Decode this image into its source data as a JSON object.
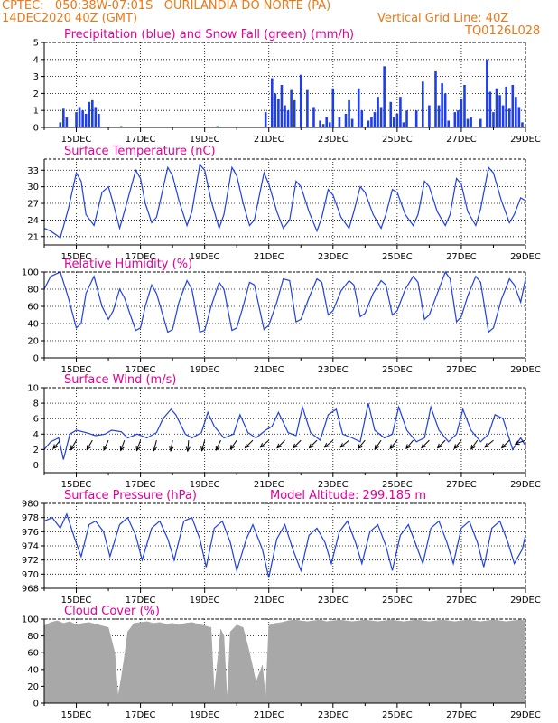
{
  "header": {
    "line1_left": "CPTEC:   050:38W-07:01S   OURILANDIA DO NORTE (PA)",
    "line2_left": "14DEC2020 40Z (GMT)",
    "line2_right": "Vertical Grid Line: 40Z",
    "line3_right": "TQ0126L028",
    "text_color": "#e8781a"
  },
  "colors": {
    "title": "#e0009a",
    "line": "#1f3fe6",
    "cloud": "#a8a8a8",
    "snow": "#15a015"
  },
  "x_axis": {
    "ticks": [
      "15DEC",
      "17DEC",
      "19DEC",
      "21DEC",
      "23DEC",
      "25DEC",
      "27DEC",
      "29DEC"
    ]
  },
  "chart_data": [
    {
      "id": "precip",
      "type": "bar",
      "title": "Precipitation (blue) and Snow Fall (green) (mm/h)",
      "ylim": [
        0,
        5
      ],
      "yticks": [
        0,
        1,
        2,
        3,
        4,
        5
      ],
      "x_range": [
        14.0,
        29.0
      ],
      "series": [
        {
          "kind": "precip",
          "x": [
            14.5,
            14.6,
            14.7,
            15.0,
            15.1,
            15.2,
            15.3,
            15.4,
            15.5,
            15.6,
            15.7,
            20.9,
            21.1,
            21.2,
            21.3,
            21.4,
            21.5,
            21.6,
            21.7,
            21.8,
            22.0,
            22.2,
            22.4,
            22.6,
            22.7,
            22.8,
            22.9,
            23.0,
            23.2,
            23.4,
            23.5,
            23.6,
            23.8,
            23.9,
            24.1,
            24.2,
            24.3,
            24.4,
            24.5,
            24.6,
            24.8,
            24.9,
            25.0,
            25.1,
            25.2,
            25.3,
            25.6,
            25.8,
            26.0,
            26.2,
            26.3,
            26.4,
            26.5,
            26.6,
            26.8,
            26.9,
            27.0,
            27.1,
            27.2,
            27.3,
            27.6,
            27.8,
            27.9,
            28.0,
            28.1,
            28.2,
            28.3,
            28.4,
            28.5,
            28.6,
            28.7,
            28.8,
            28.9
          ],
          "values": [
            0.3,
            1.1,
            0.6,
            0.9,
            1.2,
            1.0,
            0.8,
            1.5,
            1.6,
            1.2,
            0.8,
            0.9,
            2.9,
            2.0,
            1.7,
            2.5,
            1.3,
            1.0,
            2.2,
            1.6,
            3.1,
            2.2,
            1.2,
            0.4,
            0.2,
            0.6,
            0.3,
            2.3,
            0.6,
            0.8,
            1.6,
            0.5,
            2.3,
            1.0,
            0.4,
            0.6,
            0.9,
            1.8,
            1.2,
            3.6,
            1.5,
            0.6,
            0.8,
            1.8,
            0.3,
            1.0,
            1.0,
            2.7,
            1.3,
            3.3,
            1.3,
            2.6,
            2.0,
            0.4,
            0.9,
            1.0,
            1.7,
            2.5,
            0.5,
            0.6,
            0.5,
            4.0,
            2.1,
            0.9,
            2.3,
            1.9,
            1.3,
            2.4,
            1.1,
            2.5,
            1.8,
            1.2,
            0.3
          ]
        },
        {
          "kind": "snow",
          "x": [
            16.4,
            19.4
          ],
          "values": [
            0.0,
            0.0
          ]
        }
      ]
    },
    {
      "id": "temp",
      "type": "line",
      "title": "Surface Temperature (nC)",
      "ylim": [
        19.5,
        35
      ],
      "yticks": [
        21,
        24,
        27,
        30,
        33
      ],
      "x_range": [
        14.0,
        29.0
      ],
      "x": [
        14.0,
        14.2,
        14.5,
        14.75,
        15.0,
        15.15,
        15.3,
        15.55,
        15.8,
        16.0,
        16.15,
        16.35,
        16.5,
        16.85,
        17.0,
        17.15,
        17.35,
        17.5,
        17.85,
        18.0,
        18.2,
        18.45,
        18.6,
        18.85,
        19.0,
        19.2,
        19.45,
        19.6,
        19.85,
        20.0,
        20.2,
        20.4,
        20.55,
        20.85,
        21.0,
        21.25,
        21.45,
        21.65,
        21.85,
        22.0,
        22.25,
        22.5,
        22.65,
        22.85,
        23.0,
        23.25,
        23.5,
        23.65,
        23.85,
        24.0,
        24.25,
        24.5,
        24.65,
        24.85,
        25.0,
        25.25,
        25.5,
        25.65,
        25.85,
        26.0,
        26.25,
        26.5,
        26.65,
        26.85,
        27.0,
        27.2,
        27.45,
        27.6,
        27.85,
        28.0,
        28.25,
        28.5,
        28.65,
        28.85,
        29.0
      ],
      "values": [
        22.5,
        22.0,
        20.8,
        26.0,
        32.5,
        31.0,
        25.0,
        23.0,
        29.0,
        30.0,
        27.0,
        22.5,
        25.5,
        33.0,
        31.5,
        27.0,
        23.5,
        24.5,
        33.5,
        32.0,
        27.5,
        23.0,
        25.5,
        34.0,
        33.0,
        27.5,
        22.5,
        25.0,
        33.5,
        32.0,
        27.0,
        23.0,
        24.0,
        32.5,
        30.5,
        25.5,
        22.5,
        24.0,
        31.0,
        30.0,
        25.5,
        22.0,
        24.5,
        29.5,
        28.5,
        24.5,
        22.5,
        25.5,
        30.0,
        29.0,
        25.0,
        22.5,
        25.0,
        29.5,
        29.0,
        25.0,
        23.0,
        25.0,
        31.0,
        30.0,
        25.5,
        23.0,
        25.0,
        31.5,
        30.5,
        25.5,
        23.0,
        26.0,
        33.5,
        32.5,
        27.5,
        23.5,
        25.0,
        28.0,
        27.5
      ]
    },
    {
      "id": "rh",
      "type": "line",
      "title": "Relative Humidity (%)",
      "ylim": [
        0,
        100
      ],
      "yticks": [
        0,
        20,
        40,
        60,
        80,
        100
      ],
      "x_range": [
        14.0,
        29.0
      ],
      "x": [
        14.0,
        14.2,
        14.5,
        14.75,
        15.0,
        15.15,
        15.3,
        15.55,
        15.8,
        16.0,
        16.15,
        16.35,
        16.5,
        16.85,
        17.0,
        17.15,
        17.35,
        17.5,
        17.85,
        18.0,
        18.2,
        18.45,
        18.6,
        18.85,
        19.0,
        19.2,
        19.45,
        19.6,
        19.85,
        20.0,
        20.2,
        20.4,
        20.55,
        20.85,
        21.0,
        21.25,
        21.45,
        21.65,
        21.85,
        22.0,
        22.25,
        22.5,
        22.65,
        22.85,
        23.0,
        23.25,
        23.5,
        23.65,
        23.85,
        24.0,
        24.25,
        24.5,
        24.65,
        24.85,
        25.0,
        25.25,
        25.5,
        25.65,
        25.85,
        26.0,
        26.25,
        26.5,
        26.65,
        26.85,
        27.0,
        27.2,
        27.45,
        27.6,
        27.85,
        28.0,
        28.25,
        28.5,
        28.65,
        28.85,
        29.0
      ],
      "values": [
        80,
        95,
        100,
        70,
        35,
        40,
        75,
        95,
        60,
        45,
        55,
        80,
        70,
        32,
        35,
        60,
        85,
        75,
        30,
        33,
        65,
        90,
        80,
        30,
        32,
        60,
        88,
        80,
        32,
        35,
        60,
        88,
        85,
        33,
        38,
        65,
        92,
        90,
        42,
        45,
        70,
        92,
        88,
        50,
        55,
        78,
        90,
        85,
        48,
        52,
        75,
        90,
        85,
        50,
        55,
        80,
        95,
        88,
        45,
        50,
        75,
        100,
        92,
        42,
        48,
        72,
        95,
        88,
        30,
        35,
        68,
        92,
        85,
        65,
        92
      ]
    },
    {
      "id": "wind",
      "type": "line",
      "title": "Surface Wind (m/s)",
      "ylim": [
        -1,
        10
      ],
      "yticks": [
        0,
        2,
        4,
        6,
        8,
        10
      ],
      "x_range": [
        14.0,
        29.0
      ],
      "x": [
        14.0,
        14.2,
        14.45,
        14.6,
        14.8,
        15.0,
        15.3,
        15.6,
        15.9,
        16.1,
        16.4,
        16.6,
        16.9,
        17.2,
        17.5,
        17.7,
        17.95,
        18.1,
        18.4,
        18.6,
        18.9,
        19.1,
        19.3,
        19.6,
        19.9,
        20.1,
        20.35,
        20.6,
        20.9,
        21.1,
        21.3,
        21.6,
        21.85,
        22.05,
        22.3,
        22.6,
        22.85,
        23.1,
        23.3,
        23.6,
        23.85,
        24.1,
        24.3,
        24.6,
        24.85,
        25.05,
        25.3,
        25.6,
        25.85,
        26.05,
        26.3,
        26.6,
        26.85,
        27.05,
        27.3,
        27.6,
        27.85,
        28.05,
        28.3,
        28.6,
        28.85,
        29.0
      ],
      "values": [
        2.0,
        3.0,
        3.5,
        0.7,
        4.0,
        4.5,
        4.2,
        3.8,
        4.0,
        4.5,
        4.3,
        3.5,
        4.0,
        3.5,
        4.2,
        6.0,
        7.2,
        6.5,
        4.0,
        3.5,
        4.2,
        6.8,
        5.0,
        3.5,
        4.0,
        6.5,
        4.2,
        3.5,
        4.5,
        5.0,
        6.8,
        4.2,
        3.8,
        7.5,
        4.2,
        3.2,
        6.5,
        7.2,
        4.0,
        3.5,
        3.0,
        8.0,
        4.5,
        3.5,
        4.0,
        7.5,
        4.5,
        3.0,
        3.5,
        7.5,
        4.5,
        3.0,
        4.0,
        7.2,
        4.5,
        3.0,
        4.0,
        6.5,
        6.0,
        2.0,
        3.5,
        2.5
      ],
      "arrows_x": [
        14.5,
        15.0,
        15.5,
        16.0,
        16.5,
        17.0,
        17.5,
        18.0,
        18.5,
        19.0,
        19.5,
        20.0,
        20.5,
        21.0,
        21.5,
        22.0,
        22.5,
        23.0,
        23.5,
        24.0,
        24.5,
        25.0,
        25.5,
        26.0,
        26.5,
        27.0,
        27.5,
        28.0,
        28.5,
        29.0
      ],
      "arrows_dir": [
        220,
        210,
        210,
        205,
        200,
        200,
        195,
        190,
        185,
        195,
        205,
        215,
        225,
        230,
        225,
        225,
        225,
        230,
        230,
        220,
        215,
        220,
        220,
        225,
        225,
        220,
        215,
        230,
        225,
        250
      ]
    },
    {
      "id": "pres",
      "type": "line",
      "title": "Surface Pressure (hPa)",
      "subtitle": "Model Altitude: 299.185 m",
      "ylim": [
        968,
        980
      ],
      "yticks": [
        968,
        970,
        972,
        974,
        976,
        978,
        980
      ],
      "x_range": [
        14.0,
        29.0
      ],
      "x": [
        14.0,
        14.25,
        14.5,
        14.7,
        14.95,
        15.15,
        15.4,
        15.6,
        15.85,
        16.05,
        16.35,
        16.6,
        16.85,
        17.05,
        17.35,
        17.6,
        17.85,
        18.05,
        18.35,
        18.6,
        18.85,
        19.05,
        19.3,
        19.55,
        19.8,
        20.0,
        20.3,
        20.5,
        20.8,
        21.0,
        21.25,
        21.5,
        21.75,
        22.0,
        22.25,
        22.5,
        22.75,
        22.95,
        23.2,
        23.45,
        23.7,
        23.9,
        24.15,
        24.4,
        24.65,
        24.85,
        25.1,
        25.35,
        25.6,
        25.8,
        26.05,
        26.3,
        26.55,
        26.75,
        27.0,
        27.25,
        27.5,
        27.7,
        27.95,
        28.2,
        28.45,
        28.65,
        28.9,
        29.0
      ],
      "values": [
        977.5,
        978.0,
        976.5,
        978.5,
        975.0,
        972.5,
        977.0,
        977.5,
        976.0,
        972.5,
        977.0,
        978.0,
        975.5,
        972.0,
        976.5,
        977.5,
        975.0,
        972.0,
        977.5,
        978.0,
        975.0,
        971.0,
        976.5,
        977.5,
        974.5,
        970.5,
        975.0,
        977.0,
        973.5,
        969.5,
        975.0,
        977.0,
        973.5,
        970.5,
        975.5,
        976.5,
        974.5,
        971.5,
        976.0,
        977.5,
        974.5,
        971.5,
        976.0,
        977.0,
        974.0,
        970.5,
        975.5,
        977.0,
        974.0,
        971.5,
        976.5,
        977.5,
        974.5,
        971.5,
        976.5,
        977.5,
        974.5,
        971.0,
        976.5,
        977.5,
        974.5,
        971.5,
        973.5,
        975.5
      ]
    },
    {
      "id": "cloud",
      "type": "area",
      "title": "Cloud Cover (%)",
      "ylim": [
        0,
        100
      ],
      "yticks": [
        0,
        20,
        40,
        60,
        80,
        100
      ],
      "x_range": [
        14.0,
        29.0
      ],
      "x": [
        14.0,
        14.2,
        14.4,
        14.6,
        14.8,
        15.0,
        15.2,
        15.4,
        15.6,
        15.8,
        16.0,
        16.2,
        16.3,
        16.4,
        16.5,
        16.6,
        16.8,
        17.0,
        17.2,
        17.4,
        17.6,
        17.8,
        18.0,
        18.2,
        18.4,
        18.6,
        18.8,
        19.0,
        19.2,
        19.3,
        19.4,
        19.5,
        19.6,
        19.7,
        19.8,
        20.0,
        20.2,
        20.4,
        20.6,
        20.8,
        20.9,
        21.0,
        21.2,
        21.4,
        21.6,
        21.8,
        22.0,
        22.2,
        22.4,
        22.6,
        22.8,
        23.0,
        23.2,
        23.4,
        23.6,
        23.8,
        24.0,
        24.2,
        24.4,
        24.6,
        24.8,
        25.0,
        25.2,
        25.4,
        25.6,
        25.8,
        26.0,
        26.2,
        26.4,
        26.6,
        26.8,
        27.0,
        27.2,
        27.4,
        27.6,
        27.8,
        28.0,
        28.2,
        28.4,
        28.6,
        28.8,
        29.0
      ],
      "values": [
        92,
        96,
        98,
        95,
        97,
        93,
        95,
        96,
        94,
        92,
        90,
        60,
        8,
        30,
        55,
        85,
        95,
        96,
        97,
        95,
        96,
        94,
        95,
        93,
        95,
        96,
        94,
        92,
        90,
        12,
        50,
        88,
        80,
        3,
        85,
        93,
        90,
        60,
        25,
        45,
        5,
        92,
        95,
        96,
        98,
        99,
        98,
        97,
        98,
        99,
        97,
        98,
        99,
        98,
        97,
        98,
        99,
        98,
        97,
        98,
        99,
        98,
        97,
        98,
        99,
        98,
        97,
        98,
        99,
        98,
        97,
        98,
        99,
        98,
        97,
        98,
        99,
        98,
        97,
        98,
        99,
        98
      ]
    }
  ]
}
